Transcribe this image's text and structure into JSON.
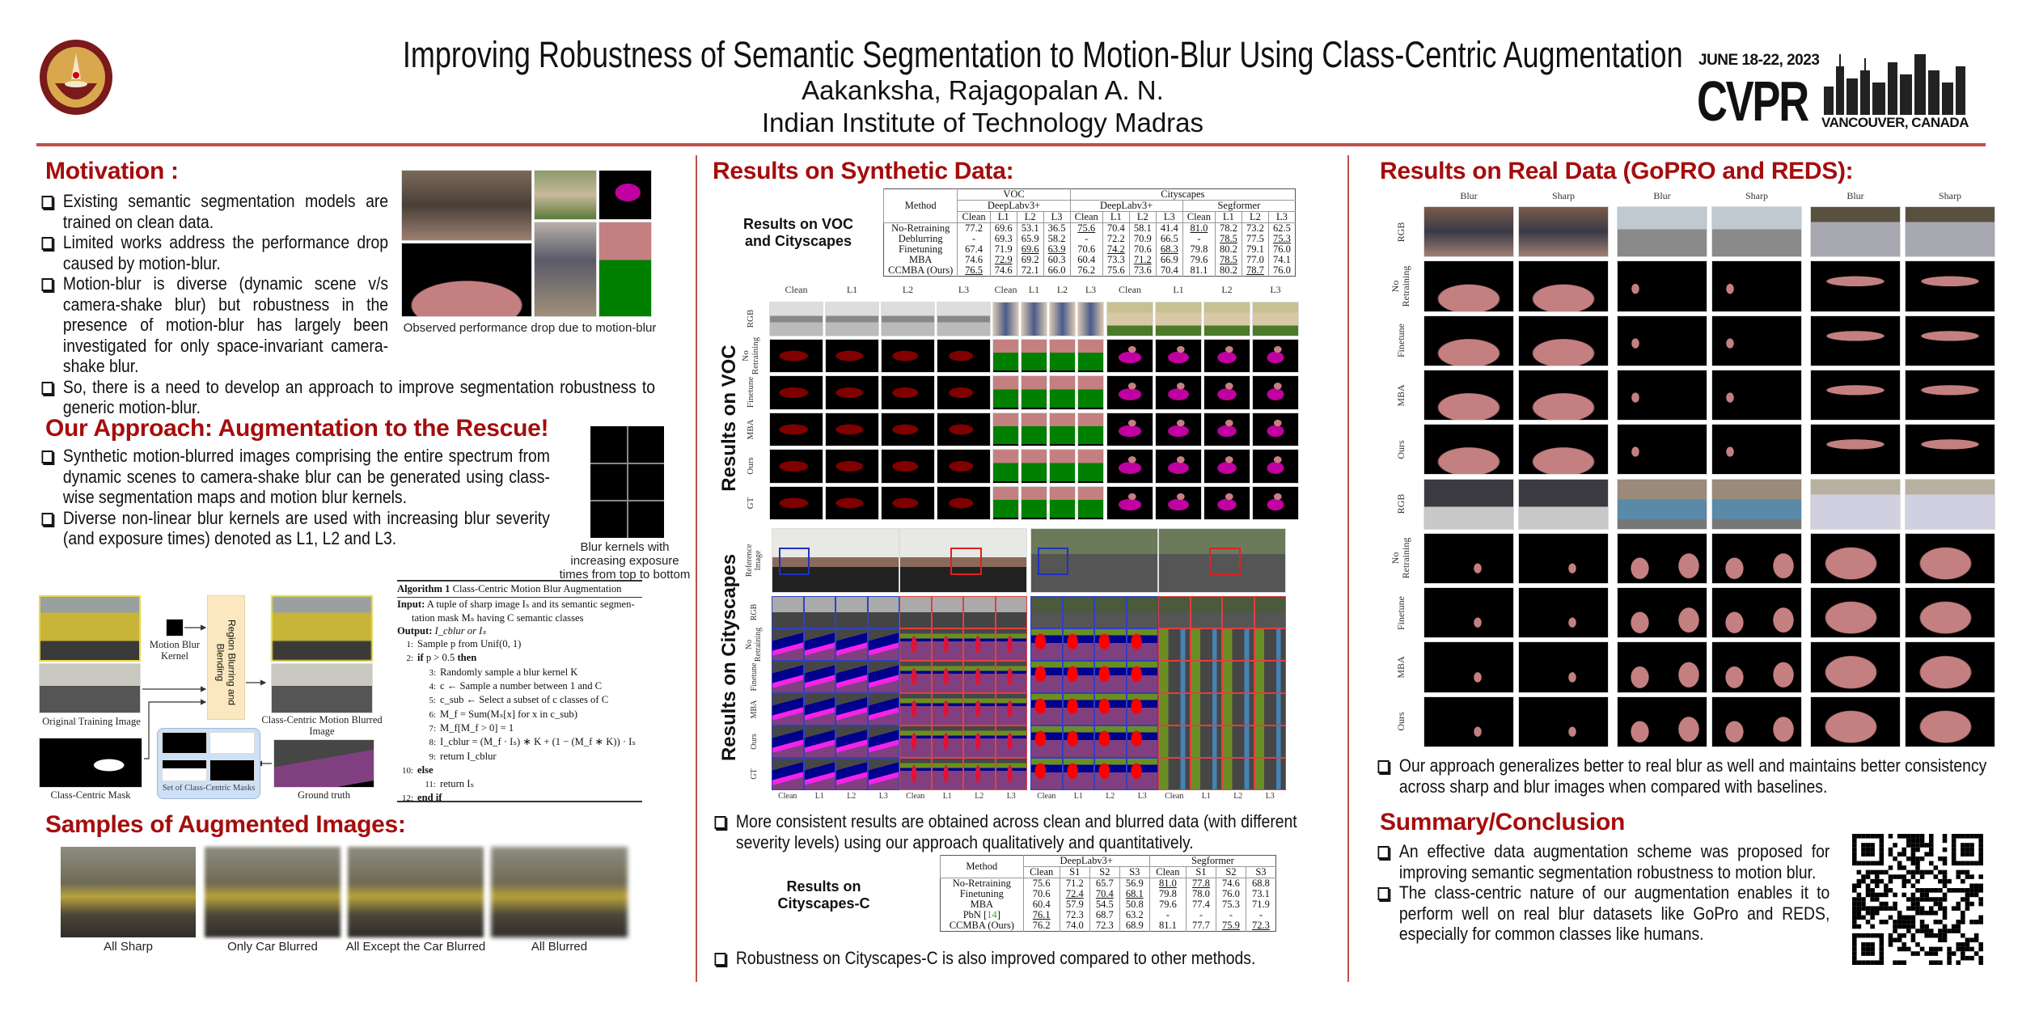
{
  "header": {
    "title": "Improving Robustness of Semantic Segmentation to Motion-Blur Using Class-Centric Augmentation",
    "authors": "Aakanksha, Rajagopalan A. N.",
    "affiliation": "Indian Institute of Technology Madras",
    "logo_text": "INDIAN INSTITUTE OF TECHNOLOGY MADRAS",
    "conference": {
      "dates": "JUNE 18-22, 2023",
      "name": "CVPR",
      "location": "VANCOUVER, CANADA"
    }
  },
  "colors": {
    "accent": "#a50d0d",
    "rule": "#c0504d",
    "person": "#c48080",
    "plane": "#800000",
    "bicycle": "#008000",
    "horse": "#c000a0",
    "road": "#804080",
    "car": "#00008e",
    "sidewalk": "#f423e8",
    "vegetation": "#6b8e23",
    "building": "#464646",
    "rider": "#ff0000",
    "pedestrian": "#dc143c"
  },
  "motivation": {
    "heading": "Motivation :",
    "bullets": [
      "Existing semantic segmentation models are trained on clean data.",
      "Limited works address the performance drop caused by motion-blur.",
      "Motion-blur is diverse (dynamic scene v/s camera-shake blur) but robustness in the presence of motion-blur has largely",
      "So, there is a need to develop an approach to improve segmentation robustness to generic motion-blur."
    ],
    "bullet3_continuation": "been investigated for only space-invariant camera-shake blur.",
    "figure_caption": "Observed performance drop due to motion-blur"
  },
  "approach": {
    "heading": "Our Approach: Augmentation to the Rescue!",
    "bullets": [
      "Synthetic motion-blurred images comprising the entire spectrum from dynamic scenes to camera-shake blur can be generated using class-wise segmentation maps and motion blur kernels.",
      "Diverse non-linear blur kernels are used with increasing blur severity (and exposure times) denoted as L1, L2 and L3."
    ],
    "kernel_caption": "Blur kernels with increasing exposure times from top to bottom",
    "pipeline": {
      "kernel": "Motion Blur Kernel",
      "blend": "Region Blurring and Blending",
      "original": "Original Training Image",
      "output": "Class-Centric Motion Blurred Image",
      "mask": "Class-Centric Mask",
      "mask_set": "Set of Class-Centric Masks",
      "gt": "Ground truth"
    }
  },
  "algorithm": {
    "label": "Algorithm 1",
    "title": "Class-Centric Motion Blur Augmentation",
    "input_kw": "Input:",
    "input": "A tuple of sharp image Iₛ and its semantic segmen-",
    "input2": "tation mask Mₛ having C semantic classes",
    "output_kw": "Output:",
    "output": "I_cblur or Iₛ",
    "lines": [
      {
        "n": "1:",
        "indent": 0,
        "kw": "",
        "text": "Sample p from Unif(0, 1)",
        "kw_end": ""
      },
      {
        "n": "2:",
        "indent": 0,
        "kw": "if",
        "text": " p > 0.5 ",
        "kw_end": "then"
      },
      {
        "n": "3:",
        "indent": 1,
        "kw": "",
        "text": "Randomly sample a blur kernel K",
        "kw_end": ""
      },
      {
        "n": "4:",
        "indent": 1,
        "kw": "",
        "text": "c ← Sample a number between 1 and C",
        "kw_end": ""
      },
      {
        "n": "5:",
        "indent": 1,
        "kw": "",
        "text": "c_sub ← Select a subset of c classes of C",
        "kw_end": ""
      },
      {
        "n": "6:",
        "indent": 1,
        "kw": "",
        "text": "M_f = Sum(Mₛ[x] for x in c_sub)",
        "kw_end": ""
      },
      {
        "n": "7:",
        "indent": 1,
        "kw": "",
        "text": "M_f[M_f > 0] = 1",
        "kw_end": ""
      },
      {
        "n": "8:",
        "indent": 1,
        "kw": "",
        "text": "I_cblur = (M_f · Iₛ) ∗ K + (1 − (M_f ∗ K)) · Iₛ",
        "kw_end": ""
      },
      {
        "n": "9:",
        "indent": 1,
        "kw": "",
        "text": "return I_cblur",
        "kw_end": ""
      },
      {
        "n": "10:",
        "indent": 0,
        "kw": "else",
        "text": "",
        "kw_end": ""
      },
      {
        "n": "11:",
        "indent": 1,
        "kw": "",
        "text": "return Iₛ",
        "kw_end": ""
      },
      {
        "n": "12:",
        "indent": 0,
        "kw": "end if",
        "text": "",
        "kw_end": ""
      }
    ]
  },
  "samples": {
    "heading": "Samples of Augmented Images:",
    "captions": [
      "All Sharp",
      "Only Car Blurred",
      "All Except the Car Blurred",
      "All Blurred"
    ]
  },
  "synthetic": {
    "heading": "Results on Synthetic Data:",
    "table1_label": "Results on VOC and Cityscapes",
    "table1": {
      "method_header": "Method",
      "datasets": [
        {
          "name": "VOC",
          "span": 4
        },
        {
          "name": "Cityscapes",
          "span": 8
        }
      ],
      "models": [
        {
          "name": "DeepLabv3+",
          "span": 4
        },
        {
          "name": "DeepLabv3+",
          "span": 4
        },
        {
          "name": "Segformer",
          "span": 4
        }
      ],
      "columns": [
        "Clean",
        "L1",
        "L2",
        "L3",
        "Clean",
        "L1",
        "L2",
        "L3",
        "Clean",
        "L1",
        "L2",
        "L3"
      ],
      "rows": [
        {
          "method": "No-Retraining",
          "values": [
            "77.2",
            "69.6",
            "53.1",
            "36.5",
            "75.6",
            "70.4",
            "58.1",
            "41.4",
            "81.0",
            "78.2",
            "73.2",
            "62.5"
          ],
          "emph": [
            "b",
            "",
            "",
            "",
            "u",
            "",
            "",
            "",
            "u",
            "",
            "",
            ""
          ]
        },
        {
          "method": "Deblurring",
          "values": [
            "-",
            "69.3",
            "65.9",
            "58.2",
            "-",
            "72.2",
            "70.9",
            "66.5",
            "-",
            "78.5",
            "77.5",
            "75.3"
          ],
          "emph": [
            "",
            "",
            "",
            "",
            "",
            "",
            "",
            "",
            "",
            "u",
            "",
            "u"
          ]
        },
        {
          "method": "Finetuning",
          "values": [
            "67.4",
            "71.9",
            "69.6",
            "63.9",
            "70.6",
            "74.2",
            "70.6",
            "68.3",
            "79.8",
            "80.2",
            "79.1",
            "76.0"
          ],
          "emph": [
            "",
            "",
            "u",
            "u",
            "",
            "u",
            "",
            "u",
            "",
            "b",
            "b",
            "b"
          ]
        },
        {
          "method": "MBA",
          "values": [
            "74.6",
            "72.9",
            "69.2",
            "60.3",
            "60.4",
            "73.3",
            "71.2",
            "66.9",
            "79.6",
            "78.5",
            "77.0",
            "74.1"
          ],
          "emph": [
            "",
            "u",
            "",
            "",
            "",
            "",
            "u",
            "",
            "",
            "u",
            "",
            ""
          ]
        },
        {
          "method": "CCMBA (Ours)",
          "values": [
            "76.5",
            "74.6",
            "72.1",
            "66.0",
            "76.2",
            "75.6",
            "73.6",
            "70.4",
            "81.1",
            "80.2",
            "78.7",
            "76.0"
          ],
          "emph": [
            "u",
            "b",
            "b",
            "b",
            "b",
            "b",
            "b",
            "b",
            "b",
            "b",
            "u",
            "b"
          ]
        }
      ]
    },
    "voc_figure": {
      "side_label": "Results on VOC",
      "columns": [
        "Clean",
        "L1",
        "L2",
        "L3",
        "Clean",
        "L1",
        "L2",
        "L3",
        "Clean",
        "L1",
        "L2",
        "L3"
      ],
      "rows": [
        "RGB",
        "No Retraining",
        "Finetune",
        "MBA",
        "Ours",
        "GT"
      ]
    },
    "cityscapes_figure": {
      "side_label": "Results on Cityscapes",
      "columns": [
        "Clean",
        "L1",
        "L2",
        "L3",
        "Clean",
        "L1",
        "L2",
        "L3",
        "Clean",
        "L1",
        "L2",
        "L3",
        "Clean",
        "L1",
        "L2",
        "L3"
      ],
      "rows": [
        "Reference Image",
        "RGB",
        "No Retraining",
        "Finetune",
        "MBA",
        "Ours",
        "GT"
      ]
    },
    "bullet1": "More consistent results are obtained across clean and blurred data (with different severity levels) using our approach qualitatively and quantitatively.",
    "table2_label": "Results on Cityscapes-C",
    "table2": {
      "method_header": "Method",
      "models": [
        {
          "name": "DeepLabv3+",
          "span": 4
        },
        {
          "name": "Segformer",
          "span": 4
        }
      ],
      "columns": [
        "Clean",
        "S1",
        "S2",
        "S3",
        "Clean",
        "S1",
        "S2",
        "S3"
      ],
      "rows": [
        {
          "method": "No-Retraining",
          "ref": "",
          "values": [
            "75.6",
            "71.2",
            "65.7",
            "56.9",
            "81.0",
            "77.8",
            "74.6",
            "68.8"
          ],
          "emph": [
            "",
            "",
            "",
            "",
            "u",
            "u",
            "",
            ""
          ]
        },
        {
          "method": "Finetuning",
          "ref": "",
          "values": [
            "70.6",
            "72.4",
            "70.4",
            "68.1",
            "79.8",
            "78.0",
            "76.0",
            "73.1"
          ],
          "emph": [
            "",
            "u",
            "u",
            "u",
            "",
            "b",
            "b",
            "b"
          ]
        },
        {
          "method": "MBA",
          "ref": "",
          "values": [
            "60.4",
            "57.9",
            "54.5",
            "50.8",
            "79.6",
            "77.4",
            "75.3",
            "71.9"
          ],
          "emph": [
            "",
            "",
            "",
            "",
            "",
            "",
            "",
            ""
          ]
        },
        {
          "method": "PbN",
          "ref": "14",
          "values": [
            "76.1",
            "72.3",
            "68.7",
            "63.2",
            "-",
            "-",
            "-",
            "-"
          ],
          "emph": [
            "u",
            "",
            "",
            "",
            "",
            "",
            "",
            ""
          ]
        },
        {
          "method": "CCMBA (Ours)",
          "ref": "",
          "values": [
            "76.2",
            "74.0",
            "72.3",
            "68.9",
            "81.1",
            "77.7",
            "75.9",
            "72.3"
          ],
          "emph": [
            "b",
            "b",
            "b",
            "b",
            "b",
            "",
            "u",
            "u"
          ]
        }
      ]
    },
    "bullet2": "Robustness on Cityscapes-C is also improved compared to other methods."
  },
  "real": {
    "heading": "Results on Real Data (GoPRO and REDS):",
    "columns": [
      "Blur",
      "Sharp",
      "Blur",
      "Sharp",
      "Blur",
      "Sharp"
    ],
    "rows": [
      "RGB",
      "No Retraining",
      "Finetune",
      "MBA",
      "Ours",
      "RGB",
      "No Retraining",
      "Finetune",
      "MBA",
      "Ours"
    ],
    "bullet": "Our approach generalizes better to real blur as well and maintains better consistency across sharp and blur images when compared with baselines."
  },
  "summary": {
    "heading": "Summary/Conclusion",
    "bullets": [
      "An effective data augmentation scheme was proposed for improving semantic segmentation robustness to motion blur.",
      "The class-centric nature of our augmentation enables it to perform well on real blur datasets like GoPro and REDS, especially for common classes like humans."
    ]
  }
}
